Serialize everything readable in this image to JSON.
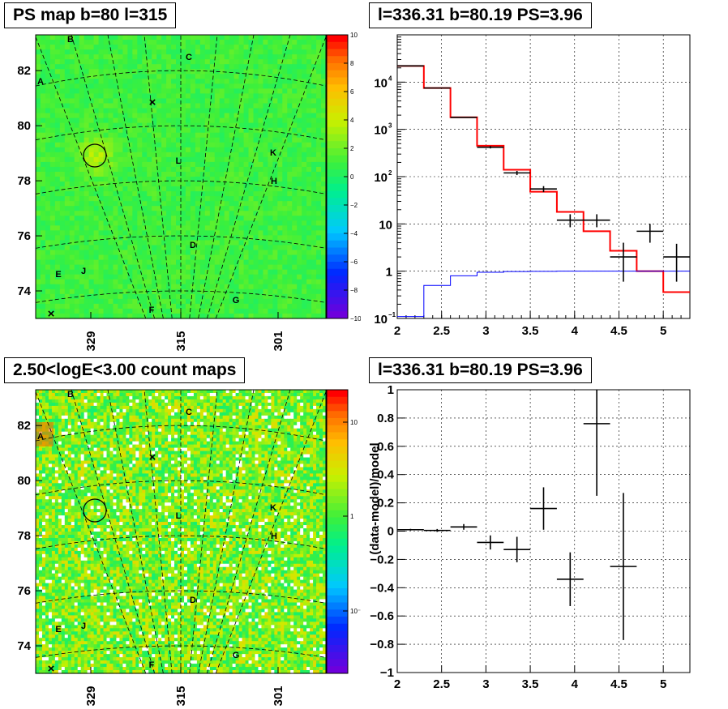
{
  "panels": {
    "ps_map": {
      "title": "PS map b=80 l=315",
      "y_ticks": [
        "74",
        "76",
        "78",
        "80",
        "82"
      ],
      "x_ticks": [
        "329",
        "315",
        "301"
      ],
      "colorbar_ticks": [
        "10",
        "8",
        "6",
        "4",
        "2",
        "0",
        "−2",
        "−4",
        "−6",
        "−8",
        "−10"
      ],
      "source_labels": [
        "A",
        "B",
        "C",
        "D",
        "E",
        "F",
        "G",
        "H",
        "J",
        "K",
        "L"
      ]
    },
    "count_map": {
      "title": "2.50<logE<3.00 count maps",
      "y_ticks": [
        "74",
        "76",
        "78",
        "80",
        "82"
      ],
      "x_ticks": [
        "329",
        "315",
        "301"
      ],
      "colorbar_ticks": [
        "10",
        "1",
        "10⁻¹"
      ],
      "source_labels": [
        "A",
        "B",
        "C",
        "D",
        "E",
        "F",
        "G",
        "H",
        "J",
        "K",
        "L"
      ]
    },
    "spectrum": {
      "title": "l=336.31 b=80.19 PS=3.96"
    },
    "residual": {
      "title": "l=336.31 b=80.19 PS=3.96"
    }
  },
  "chart_data": [
    {
      "type": "heatmap",
      "title": "PS map b=80 l=315",
      "ylim": [
        73,
        83.3
      ],
      "y_ticks": [
        74,
        76,
        78,
        80,
        82
      ],
      "x_ticks": [
        329,
        315,
        301
      ],
      "zlim": [
        -10,
        10
      ],
      "colorbar": "rainbow",
      "markers": [
        {
          "label": "A",
          "l": 333,
          "b": 81.8
        },
        {
          "label": "B",
          "l": 331,
          "b": 83.2
        },
        {
          "label": "C",
          "l": 314,
          "b": 82.6
        },
        {
          "label": "D",
          "l": 313,
          "b": 75.7
        },
        {
          "label": "E",
          "l": 334,
          "b": 74.5
        },
        {
          "label": "F",
          "l": 320,
          "b": 73.3
        },
        {
          "label": "G",
          "l": 306,
          "b": 73.7
        },
        {
          "label": "H",
          "l": 303,
          "b": 78.1
        },
        {
          "label": "J",
          "l": 331,
          "b": 74.6
        },
        {
          "label": "K",
          "l": 303,
          "b": 79.2
        },
        {
          "label": "L",
          "l": 315,
          "b": 78.9
        }
      ],
      "circle": {
        "l": 329,
        "b": 79.1
      }
    },
    {
      "type": "heatmap",
      "title": "2.50<logE<3.00 count maps",
      "ylim": [
        73,
        83.3
      ],
      "y_ticks": [
        74,
        76,
        78,
        80,
        82
      ],
      "x_ticks": [
        329,
        315,
        301
      ],
      "zscale": "log",
      "zlim": [
        0.05,
        20
      ],
      "colorbar": "rainbow"
    },
    {
      "type": "line",
      "title": "l=336.31 b=80.19 PS=3.96",
      "xlim": [
        2,
        5.3
      ],
      "ylim": [
        0.1,
        100000
      ],
      "yscale": "log",
      "x_ticks": [
        2,
        2.5,
        3,
        3.5,
        4,
        4.5,
        5
      ],
      "grid": true,
      "series": [
        {
          "kind": "step",
          "color": "#ff0000",
          "edges": [
            2,
            2.3,
            2.6,
            2.9,
            3.2,
            3.5,
            3.8,
            4.1,
            4.4,
            4.7,
            5.0,
            5.3
          ],
          "values": [
            22000,
            7500,
            1800,
            450,
            140,
            48,
            18,
            7,
            2.7,
            1.0,
            0.36
          ]
        },
        {
          "kind": "step",
          "color": "#0000ff",
          "edges": [
            2,
            2.3,
            2.6,
            2.9,
            3.2,
            3.5,
            3.8,
            4.1,
            4.4,
            4.7,
            5.0,
            5.3
          ],
          "values": [
            0.11,
            0.5,
            0.8,
            0.95,
            0.98,
            0.99,
            1.0,
            1.0,
            1.0,
            1.0,
            1.0
          ]
        },
        {
          "kind": "errorbars",
          "color": "#000000",
          "points": [
            {
              "x": 2.15,
              "y": 22000,
              "xerr": 0.15,
              "ylo": 21800,
              "yhi": 22200
            },
            {
              "x": 2.45,
              "y": 7500,
              "xerr": 0.15,
              "ylo": 7400,
              "yhi": 7600
            },
            {
              "x": 2.75,
              "y": 1800,
              "xerr": 0.15,
              "ylo": 1750,
              "yhi": 1850
            },
            {
              "x": 3.05,
              "y": 420,
              "xerr": 0.15,
              "ylo": 395,
              "yhi": 445
            },
            {
              "x": 3.35,
              "y": 120,
              "xerr": 0.15,
              "ylo": 108,
              "yhi": 132
            },
            {
              "x": 3.65,
              "y": 55,
              "xerr": 0.15,
              "ylo": 47,
              "yhi": 63
            },
            {
              "x": 3.95,
              "y": 12,
              "xerr": 0.15,
              "ylo": 8.5,
              "yhi": 16
            },
            {
              "x": 4.25,
              "y": 12,
              "xerr": 0.15,
              "ylo": 8.5,
              "yhi": 16
            },
            {
              "x": 4.55,
              "y": 2,
              "xerr": 0.15,
              "ylo": 0.6,
              "yhi": 4
            },
            {
              "x": 4.85,
              "y": 7,
              "xerr": 0.15,
              "ylo": 4,
              "yhi": 10
            },
            {
              "x": 5.15,
              "y": 2,
              "xerr": 0.15,
              "ylo": 0.6,
              "yhi": 3.8
            }
          ]
        }
      ]
    },
    {
      "type": "scatter",
      "title": "l=336.31 b=80.19 PS=3.96",
      "ylabel": "(data-model)/model",
      "xlim": [
        2,
        5.3
      ],
      "ylim": [
        -1,
        1
      ],
      "x_ticks": [
        2,
        2.5,
        3,
        3.5,
        4,
        4.5,
        5
      ],
      "y_ticks": [
        -1,
        -0.8,
        -0.6,
        -0.4,
        -0.2,
        0,
        0.2,
        0.4,
        0.6,
        0.8,
        1
      ],
      "grid": true,
      "points": [
        {
          "x": 2.15,
          "y": 0.01,
          "xerr": 0.15,
          "yerr": 0.006
        },
        {
          "x": 2.45,
          "y": 0.005,
          "xerr": 0.15,
          "yerr": 0.01
        },
        {
          "x": 2.75,
          "y": 0.03,
          "xerr": 0.15,
          "yerr": 0.02
        },
        {
          "x": 3.05,
          "y": -0.08,
          "xerr": 0.15,
          "yerr": 0.05
        },
        {
          "x": 3.35,
          "y": -0.13,
          "xerr": 0.15,
          "yerr": 0.09
        },
        {
          "x": 3.65,
          "y": 0.16,
          "xerr": 0.15,
          "yerr": 0.15
        },
        {
          "x": 3.95,
          "y": -0.34,
          "xerr": 0.15,
          "yerr": 0.19
        },
        {
          "x": 4.25,
          "y": 0.76,
          "xerr": 0.15,
          "yerr": 0.51
        },
        {
          "x": 4.55,
          "y": -0.25,
          "xerr": 0.15,
          "yerr": 0.52
        }
      ]
    }
  ]
}
